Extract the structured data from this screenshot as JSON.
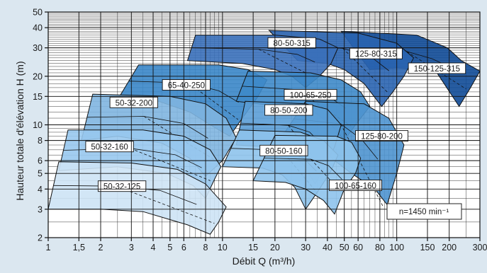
{
  "chart_data": {
    "type": "area",
    "xlabel": "Débit Q (m³/h)",
    "ylabel": "Hauteur totale d'élévation  H (m)",
    "x_scale": "log",
    "y_scale": "log",
    "xlim": [
      1,
      300
    ],
    "ylim": [
      2,
      50
    ],
    "x_ticks": [
      1,
      1.5,
      2,
      3,
      4,
      5,
      6,
      8,
      10,
      15,
      20,
      30,
      40,
      50,
      60,
      80,
      100,
      150,
      200,
      300
    ],
    "x_tick_labels": [
      "1",
      "1,5",
      "2",
      "3",
      "4",
      "5",
      "6",
      "8",
      "10",
      "15",
      "20",
      "30",
      "40",
      "50",
      "60",
      "80",
      "100",
      "150",
      "200",
      "300"
    ],
    "y_ticks": [
      2,
      3,
      4,
      5,
      6,
      8,
      10,
      15,
      20,
      30,
      40,
      50
    ],
    "y_tick_labels": [
      "2",
      "3",
      "4",
      "5",
      "6",
      "8",
      "10",
      "15",
      "20",
      "30",
      "40",
      "50"
    ],
    "grid": true,
    "annotation": "n=1450 min⁻¹",
    "series": [
      {
        "name": "150-125-315",
        "color": "#0f4a96",
        "label_at": [
          170,
          22.3
        ],
        "outline": [
          [
            48,
            38
          ],
          [
            130,
            36
          ],
          [
            195,
            30
          ],
          [
            235,
            25
          ],
          [
            300,
            21.5
          ],
          [
            265,
            17
          ],
          [
            228,
            13
          ],
          [
            170,
            21
          ],
          [
            130,
            22
          ],
          [
            100,
            22.5
          ],
          [
            70,
            22
          ]
        ]
      },
      {
        "name": "125-80-315",
        "color": "#2a64b0",
        "label_at": [
          76,
          27.5
        ],
        "outline": [
          [
            18.5,
            38.5
          ],
          [
            60,
            37
          ],
          [
            100,
            32
          ],
          [
            125,
            26
          ],
          [
            110,
            20
          ],
          [
            95,
            16
          ],
          [
            82,
            13
          ],
          [
            65,
            18
          ],
          [
            50,
            22
          ],
          [
            40,
            24
          ],
          [
            27,
            25
          ]
        ]
      },
      {
        "name": "80-50-315",
        "color": "#3a70ba",
        "label_at": [
          25,
          32
        ],
        "outline": [
          [
            7,
            36
          ],
          [
            20,
            36
          ],
          [
            36,
            34
          ],
          [
            46,
            30
          ],
          [
            42,
            24
          ],
          [
            36,
            20
          ],
          [
            30,
            17
          ],
          [
            25,
            20
          ],
          [
            20,
            22
          ],
          [
            13,
            24
          ],
          [
            6.3,
            25
          ]
        ]
      },
      {
        "name": "65-40-250",
        "color": "#3a86c8",
        "label_at": [
          6.2,
          17.6
        ],
        "outline": [
          [
            3.3,
            23.5
          ],
          [
            9.5,
            23.5
          ],
          [
            14,
            22
          ],
          [
            18,
            19
          ],
          [
            16,
            15
          ],
          [
            13,
            11
          ],
          [
            11,
            8.5
          ],
          [
            8.5,
            10
          ],
          [
            6.5,
            12
          ],
          [
            4.3,
            14
          ],
          [
            2.55,
            14.8
          ]
        ]
      },
      {
        "name": "100-65-250",
        "color": "#3e89c9",
        "label_at": [
          32,
          15.3
        ],
        "outline": [
          [
            14,
            21.5
          ],
          [
            32,
            21
          ],
          [
            48,
            19
          ],
          [
            62,
            16
          ],
          [
            70,
            13
          ],
          [
            58,
            10
          ],
          [
            50,
            8
          ],
          [
            42,
            10
          ],
          [
            32,
            12.5
          ],
          [
            22,
            13
          ],
          [
            12,
            14
          ]
        ]
      },
      {
        "name": "50-32-200",
        "color": "#7fb5e0",
        "label_at": [
          3.1,
          13.7
        ],
        "outline": [
          [
            1.8,
            15.5
          ],
          [
            5,
            15
          ],
          [
            8,
            13.5
          ],
          [
            10.5,
            11
          ],
          [
            12,
            8.3
          ],
          [
            10,
            6
          ],
          [
            8,
            4.8
          ],
          [
            6.5,
            6.2
          ],
          [
            4.5,
            7.7
          ],
          [
            2.5,
            8.5
          ],
          [
            1.55,
            8
          ]
        ]
      },
      {
        "name": "125-80-200",
        "color": "#4e93cf",
        "label_at": [
          82,
          8.5
        ],
        "outline": [
          [
            30,
            14
          ],
          [
            65,
            13.5
          ],
          [
            90,
            11
          ],
          [
            110,
            7.5
          ],
          [
            100,
            5
          ],
          [
            88,
            3.2
          ],
          [
            75,
            4
          ],
          [
            55,
            5
          ],
          [
            44,
            6
          ],
          [
            35,
            7.6
          ],
          [
            22,
            8.5
          ]
        ]
      },
      {
        "name": "80-50-200",
        "color": "#5b9dd6",
        "label_at": [
          24,
          12.3
        ],
        "outline": [
          [
            13.5,
            14
          ],
          [
            30,
            13.5
          ],
          [
            40,
            12.5
          ],
          [
            48,
            10
          ],
          [
            44,
            7.3
          ],
          [
            39,
            5.6
          ],
          [
            34,
            4.3
          ],
          [
            29,
            5.7
          ],
          [
            25,
            6.5
          ],
          [
            19,
            7.3
          ],
          [
            12,
            7.5
          ]
        ]
      },
      {
        "name": "80-50-160",
        "color": "#8ec3ec",
        "label_at": [
          22.5,
          6.9
        ],
        "outline": [
          [
            12.5,
            9.3
          ],
          [
            28,
            9
          ],
          [
            38,
            8
          ],
          [
            46,
            6.5
          ],
          [
            42,
            5.2
          ],
          [
            36,
            4
          ],
          [
            30,
            3
          ],
          [
            26,
            4.1
          ],
          [
            22,
            4.9
          ],
          [
            17,
            5.4
          ],
          [
            10,
            5.5
          ]
        ]
      },
      {
        "name": "50-32-160",
        "color": "#98c8ee",
        "label_at": [
          2.25,
          7.3
        ],
        "outline": [
          [
            1.3,
            9.3
          ],
          [
            3.5,
            9.3
          ],
          [
            6,
            8.5
          ],
          [
            8.5,
            7
          ],
          [
            9.8,
            5.5
          ],
          [
            9,
            4.6
          ],
          [
            8,
            3.5
          ],
          [
            6.8,
            4.2
          ],
          [
            4.8,
            5
          ],
          [
            2.5,
            5.5
          ],
          [
            1.15,
            5.2
          ]
        ]
      },
      {
        "name": "100-65-160",
        "color": "#8ec3ec",
        "label_at": [
          58,
          4.2
        ],
        "outline": [
          [
            20,
            8.6
          ],
          [
            45,
            8.5
          ],
          [
            55,
            7.8
          ],
          [
            62,
            6.2
          ],
          [
            58,
            5
          ],
          [
            50,
            4
          ],
          [
            44,
            2.8
          ],
          [
            38,
            3.4
          ],
          [
            30,
            4
          ],
          [
            23,
            4.4
          ],
          [
            15,
            4.5
          ]
        ]
      },
      {
        "name": "50-32-125",
        "color": "#cde3f5",
        "label_at": [
          2.65,
          4.15
        ],
        "outline": [
          [
            1.15,
            5.9
          ],
          [
            3,
            5.8
          ],
          [
            5.5,
            5.3
          ],
          [
            8,
            4.3
          ],
          [
            10.5,
            3.1
          ],
          [
            9.5,
            2.5
          ],
          [
            8.5,
            2.1
          ],
          [
            6.3,
            2.4
          ],
          [
            3.5,
            2.9
          ],
          [
            2,
            3
          ],
          [
            1,
            3
          ]
        ]
      }
    ]
  }
}
